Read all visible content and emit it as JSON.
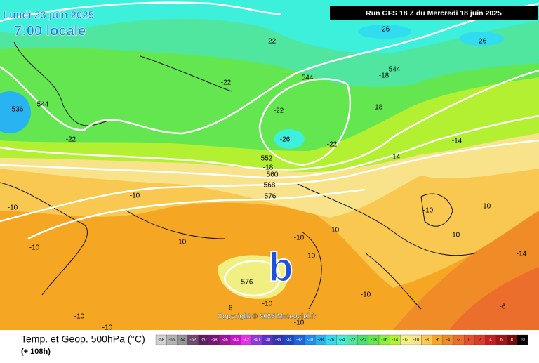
{
  "header": {
    "date": "Lundi 23 juin 2025",
    "time": "7:00 locale",
    "run": "Run GFS 18 Z du Mercredi 18 juin 2025"
  },
  "copyright": "Copyright © 2025 Meteociel.fr",
  "low_marker": "b",
  "map_labels": [
    -26,
    -26,
    -22,
    -22,
    544,
    -18,
    544,
    -22,
    -18,
    536,
    544,
    -22,
    -26,
    -22,
    552,
    -18,
    560,
    -14,
    -14,
    568,
    576,
    -10,
    -10,
    -10,
    -10,
    -10,
    -10,
    -10,
    -10,
    -10,
    -10,
    -14,
    576,
    -10,
    -10,
    -6,
    -6,
    -10,
    -10,
    -10
  ],
  "legend": {
    "title": "Temp. et Geop. 500hPa (°C)",
    "lead": "(+ 108h)",
    "scale": [
      {
        "value": -58,
        "color": "#d2d2d2"
      },
      {
        "value": -56,
        "color": "#b4b4b4"
      },
      {
        "value": -54,
        "color": "#969696"
      },
      {
        "value": -52,
        "color": "#6e4a6e"
      },
      {
        "value": -50,
        "color": "#5a1e5a"
      },
      {
        "value": -48,
        "color": "#781478"
      },
      {
        "value": -46,
        "color": "#a0149e"
      },
      {
        "value": -44,
        "color": "#c814c8"
      },
      {
        "value": -42,
        "color": "#e632e6"
      },
      {
        "value": -40,
        "color": "#8c3cdc"
      },
      {
        "value": -38,
        "color": "#5a32c8"
      },
      {
        "value": -36,
        "color": "#3232b4"
      },
      {
        "value": -34,
        "color": "#1e46c8"
      },
      {
        "value": -32,
        "color": "#1e64dc"
      },
      {
        "value": -30,
        "color": "#1e8cf0"
      },
      {
        "value": -28,
        "color": "#28b4f0"
      },
      {
        "value": -26,
        "color": "#32dcf0"
      },
      {
        "value": -24,
        "color": "#3cf0dc"
      },
      {
        "value": -22,
        "color": "#50e6a0"
      },
      {
        "value": -20,
        "color": "#50dc6e"
      },
      {
        "value": -18,
        "color": "#64e650"
      },
      {
        "value": -16,
        "color": "#8cf03c"
      },
      {
        "value": -14,
        "color": "#b4f032"
      },
      {
        "value": -12,
        "color": "#f0f082"
      },
      {
        "value": -10,
        "color": "#f8e38a"
      },
      {
        "value": -8,
        "color": "#f8c850"
      },
      {
        "value": -6,
        "color": "#f5a623"
      },
      {
        "value": -4,
        "color": "#f08c28"
      },
      {
        "value": -2,
        "color": "#ec6e2c"
      },
      {
        "value": 0,
        "color": "#e6502a"
      },
      {
        "value": 2,
        "color": "#dc3c28"
      },
      {
        "value": 4,
        "color": "#c81e1e"
      },
      {
        "value": 6,
        "color": "#a01414"
      },
      {
        "value": 8,
        "color": "#780a0a"
      },
      {
        "value": 10,
        "color": "#000000"
      }
    ]
  }
}
